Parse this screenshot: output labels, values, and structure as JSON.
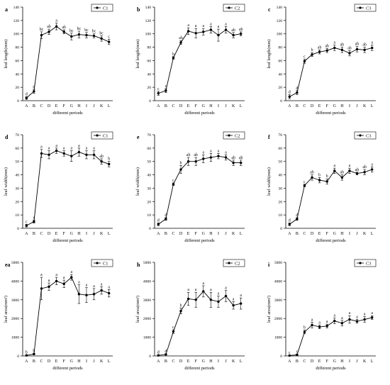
{
  "chart_data": [
    {
      "type": "line",
      "panel": "a",
      "legend": "C1",
      "ylabel": "leaf length(mm)",
      "xlabel": "different periods",
      "ylim": [
        0,
        140
      ],
      "yticks": [
        0,
        20,
        40,
        60,
        80,
        100,
        120,
        140
      ],
      "categories": [
        "A",
        "B",
        "C",
        "D",
        "E",
        "F",
        "G",
        "H",
        "I",
        "J",
        "K",
        "L"
      ],
      "values": [
        4,
        14,
        98,
        103,
        111,
        103,
        96,
        99,
        98,
        97,
        93,
        88
      ],
      "errors": [
        2,
        3,
        5,
        4,
        5,
        3,
        5,
        5,
        4,
        3,
        4,
        4
      ],
      "letters": [
        "d",
        "d",
        "bc",
        "ab",
        "a",
        "ab",
        "bc",
        "bc",
        "bc",
        "bc",
        "bc",
        "c"
      ]
    },
    {
      "type": "line",
      "panel": "b",
      "legend": "C2",
      "ylabel": "leaf length(mm)",
      "xlabel": "different periods",
      "ylim": [
        0,
        140
      ],
      "yticks": [
        0,
        20,
        40,
        60,
        80,
        100,
        120,
        140
      ],
      "categories": [
        "A",
        "B",
        "C",
        "D",
        "E",
        "F",
        "G",
        "H",
        "I",
        "J",
        "K",
        "L"
      ],
      "values": [
        11,
        15,
        64,
        87,
        104,
        101,
        103,
        106,
        98,
        106,
        98,
        100
      ],
      "errors": [
        3,
        3,
        2,
        3,
        5,
        7,
        5,
        5,
        9,
        5,
        4,
        3
      ],
      "letters": [
        "c",
        "c",
        "b",
        "ab",
        "a",
        "a",
        "a",
        "a",
        "a",
        "a",
        "ab",
        "ab"
      ]
    },
    {
      "type": "line",
      "panel": "c",
      "legend": "C3",
      "ylabel": "leaf length(mm)",
      "xlabel": "different periods",
      "ylim": [
        0,
        140
      ],
      "yticks": [
        0,
        20,
        40,
        60,
        80,
        100,
        120,
        140
      ],
      "categories": [
        "A",
        "B",
        "C",
        "D",
        "E",
        "F",
        "G",
        "H",
        "I",
        "J",
        "K",
        "L"
      ],
      "values": [
        6,
        12,
        59,
        69,
        73,
        75,
        79,
        76,
        71,
        77,
        76,
        79
      ],
      "errors": [
        3,
        3,
        3,
        3,
        3,
        3,
        4,
        4,
        4,
        4,
        4,
        4
      ],
      "letters": [
        "d",
        "d",
        "c",
        "b",
        "ab",
        "ab",
        "a",
        "ab",
        "ab",
        "ab",
        "ab",
        "a"
      ]
    },
    {
      "type": "line",
      "panel": "d",
      "legend": "C1",
      "ylabel": "leaf width(mm)",
      "xlabel": "different periods",
      "ylim": [
        0,
        70
      ],
      "yticks": [
        0,
        10,
        20,
        30,
        40,
        50,
        60,
        70
      ],
      "categories": [
        "A",
        "B",
        "C",
        "D",
        "E",
        "F",
        "G",
        "H",
        "I",
        "J",
        "K",
        "L"
      ],
      "values": [
        2,
        5,
        56,
        55,
        58,
        56,
        54,
        57,
        55,
        55,
        50,
        48
      ],
      "errors": [
        1,
        1,
        3,
        3,
        2,
        2,
        4,
        3,
        3,
        3,
        2,
        2
      ],
      "letters": [
        "c",
        "c",
        "a",
        "a",
        "a",
        "a",
        "a",
        "a",
        "a",
        "a",
        "ab",
        "b"
      ]
    },
    {
      "type": "line",
      "panel": "e",
      "legend": "C2",
      "ylabel": "leaf width(mm)",
      "xlabel": "different periods",
      "ylim": [
        0,
        70
      ],
      "yticks": [
        0,
        10,
        20,
        30,
        40,
        50,
        60,
        70
      ],
      "categories": [
        "A",
        "B",
        "C",
        "D",
        "E",
        "F",
        "G",
        "H",
        "I",
        "J",
        "K",
        "L"
      ],
      "values": [
        3,
        7,
        33,
        44,
        50,
        50,
        52,
        53,
        54,
        53,
        49,
        49
      ],
      "errors": [
        1,
        1,
        1,
        3,
        3,
        3,
        3,
        3,
        2,
        2,
        2,
        2
      ],
      "letters": [
        "d",
        "d",
        "c",
        "b",
        "ab",
        "ab",
        "a",
        "a",
        "a",
        "a",
        "ab",
        "ab"
      ]
    },
    {
      "type": "line",
      "panel": "f",
      "legend": "C3",
      "ylabel": "leaf width(mm)",
      "xlabel": "different periods",
      "ylim": [
        0,
        70
      ],
      "yticks": [
        0,
        10,
        20,
        30,
        40,
        50,
        60,
        70
      ],
      "categories": [
        "A",
        "B",
        "C",
        "D",
        "E",
        "F",
        "G",
        "H",
        "I",
        "J",
        "K",
        "L"
      ],
      "values": [
        3,
        7,
        32,
        38,
        36,
        35,
        43,
        38,
        43,
        41,
        42,
        44
      ],
      "errors": [
        1,
        1,
        1,
        2,
        2,
        2,
        2,
        2,
        2,
        1,
        2,
        2
      ],
      "letters": [
        "d",
        "d",
        "c",
        "ab",
        "b",
        "b",
        "a",
        "ab",
        "a",
        "ab",
        "ab",
        "a"
      ]
    },
    {
      "type": "line",
      "panel": "",
      "panel_label": "ea",
      "legend": "C1",
      "ylabel": "leaf area(mm²)",
      "xlabel": "different periods",
      "ylim": [
        0,
        5000
      ],
      "yticks": [
        0,
        1000,
        2000,
        3000,
        4000,
        5000
      ],
      "categories": [
        "A",
        "B",
        "C",
        "D",
        "E",
        "F",
        "G",
        "H",
        "I",
        "J",
        "K",
        "L"
      ],
      "values": [
        30,
        100,
        3600,
        3700,
        4000,
        3850,
        4200,
        3300,
        3250,
        3300,
        3500,
        3350
      ],
      "errors": [
        20,
        30,
        600,
        200,
        200,
        200,
        150,
        500,
        400,
        300,
        200,
        200
      ],
      "letters": [
        "b",
        "b",
        "a",
        "a",
        "a",
        "a",
        "a",
        "a",
        "a",
        "a",
        "a",
        "a"
      ]
    },
    {
      "type": "line",
      "panel": "h",
      "legend": "C2",
      "ylabel": "leaf area(mm²)",
      "xlabel": "different periods",
      "ylim": [
        0,
        5000
      ],
      "yticks": [
        0,
        1000,
        2000,
        3000,
        4000,
        5000
      ],
      "categories": [
        "A",
        "B",
        "C",
        "D",
        "E",
        "F",
        "G",
        "H",
        "I",
        "J",
        "K",
        "L"
      ],
      "values": [
        30,
        80,
        1300,
        2400,
        3050,
        3000,
        3450,
        3000,
        2900,
        3200,
        2700,
        2800
      ],
      "errors": [
        20,
        30,
        100,
        150,
        350,
        400,
        300,
        400,
        300,
        300,
        200,
        300
      ],
      "letters": [
        "d",
        "d",
        "c",
        "b",
        "a",
        "a",
        "a",
        "a",
        "a",
        "a",
        "a",
        "a"
      ]
    },
    {
      "type": "line",
      "panel": "i",
      "legend": "C3",
      "ylabel": "leaf area(mm²)",
      "xlabel": "different periods",
      "ylim": [
        0,
        5000
      ],
      "yticks": [
        0,
        1000,
        2000,
        3000,
        4000,
        5000
      ],
      "categories": [
        "A",
        "B",
        "C",
        "D",
        "E",
        "F",
        "G",
        "H",
        "I",
        "J",
        "K",
        "L"
      ],
      "values": [
        20,
        60,
        1280,
        1650,
        1550,
        1600,
        1870,
        1750,
        1950,
        1850,
        1950,
        2050
      ],
      "errors": [
        20,
        30,
        100,
        150,
        100,
        100,
        150,
        150,
        200,
        100,
        150,
        100
      ],
      "letters": [
        "c",
        "c",
        "b",
        "a",
        "a",
        "a",
        "a",
        "a",
        "a",
        "a",
        "a",
        "a"
      ]
    }
  ]
}
